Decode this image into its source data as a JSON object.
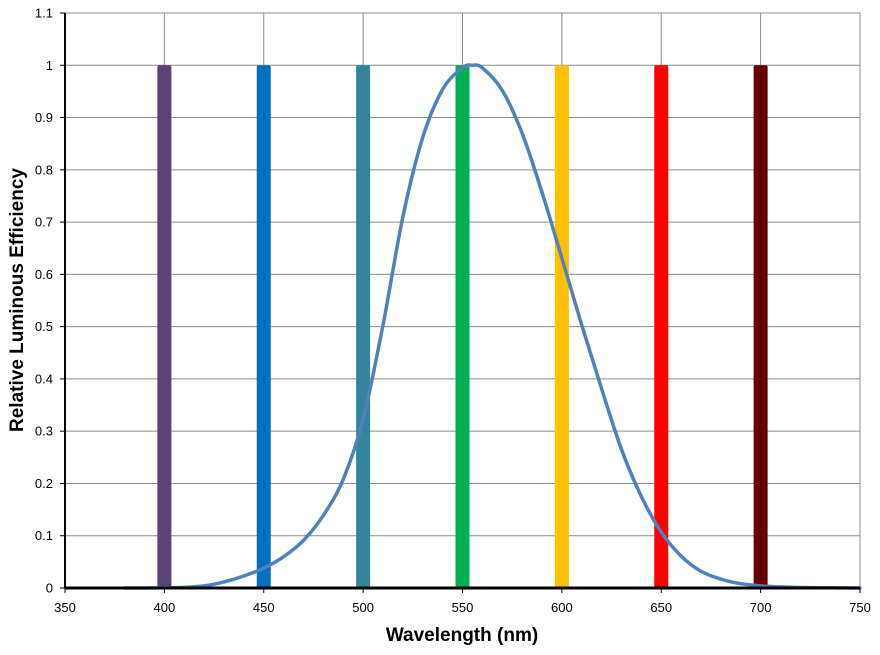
{
  "chart_data": {
    "type": "line",
    "title": "",
    "xlabel": "Wavelength (nm)",
    "ylabel": "Relative Luminous Efficiency",
    "xlim": [
      350,
      750
    ],
    "ylim": [
      0,
      1.1
    ],
    "x_ticks": [
      350,
      400,
      450,
      500,
      550,
      600,
      650,
      700,
      750
    ],
    "y_ticks": [
      0,
      0.1,
      0.2,
      0.3,
      0.4,
      0.5,
      0.6,
      0.7,
      0.8,
      0.9,
      1,
      1.1
    ],
    "x_tick_labels": [
      "350",
      "400",
      "450",
      "500",
      "550",
      "600",
      "650",
      "700",
      "750"
    ],
    "y_tick_labels": [
      "0",
      "0.1",
      "0.2",
      "0.3",
      "0.4",
      "0.5",
      "0.6",
      "0.7",
      "0.8",
      "0.9",
      "1",
      "1.1"
    ],
    "grid": true,
    "legend": "none",
    "series": [
      {
        "color": "#4F81BD",
        "points": [
          [
            380,
            0.0
          ],
          [
            390,
            0.0001
          ],
          [
            400,
            0.0004
          ],
          [
            410,
            0.0012
          ],
          [
            420,
            0.004
          ],
          [
            430,
            0.0116
          ],
          [
            440,
            0.023
          ],
          [
            450,
            0.038
          ],
          [
            460,
            0.06
          ],
          [
            470,
            0.091
          ],
          [
            480,
            0.139
          ],
          [
            490,
            0.208
          ],
          [
            500,
            0.323
          ],
          [
            510,
            0.503
          ],
          [
            520,
            0.71
          ],
          [
            530,
            0.862
          ],
          [
            540,
            0.954
          ],
          [
            550,
            0.995
          ],
          [
            555,
            1.0
          ],
          [
            560,
            0.995
          ],
          [
            570,
            0.952
          ],
          [
            580,
            0.87
          ],
          [
            590,
            0.757
          ],
          [
            600,
            0.631
          ],
          [
            610,
            0.503
          ],
          [
            620,
            0.381
          ],
          [
            630,
            0.265
          ],
          [
            640,
            0.175
          ],
          [
            650,
            0.107
          ],
          [
            660,
            0.061
          ],
          [
            670,
            0.032
          ],
          [
            680,
            0.017
          ],
          [
            690,
            0.0082
          ],
          [
            700,
            0.0041
          ],
          [
            710,
            0.0021
          ],
          [
            720,
            0.001
          ],
          [
            730,
            0.0005
          ],
          [
            740,
            0.0003
          ],
          [
            750,
            0.0001
          ]
        ]
      }
    ],
    "bars": [
      {
        "x": 400,
        "value": 1,
        "color": "#5B4374"
      },
      {
        "x": 450,
        "value": 1,
        "color": "#0070C0"
      },
      {
        "x": 500,
        "value": 1,
        "color": "#31859C"
      },
      {
        "x": 550,
        "value": 1,
        "color": "#00B050"
      },
      {
        "x": 600,
        "value": 1,
        "color": "#FFC000"
      },
      {
        "x": 650,
        "value": 1,
        "color": "#FF0000"
      },
      {
        "x": 700,
        "value": 1,
        "color": "#660000"
      }
    ]
  }
}
